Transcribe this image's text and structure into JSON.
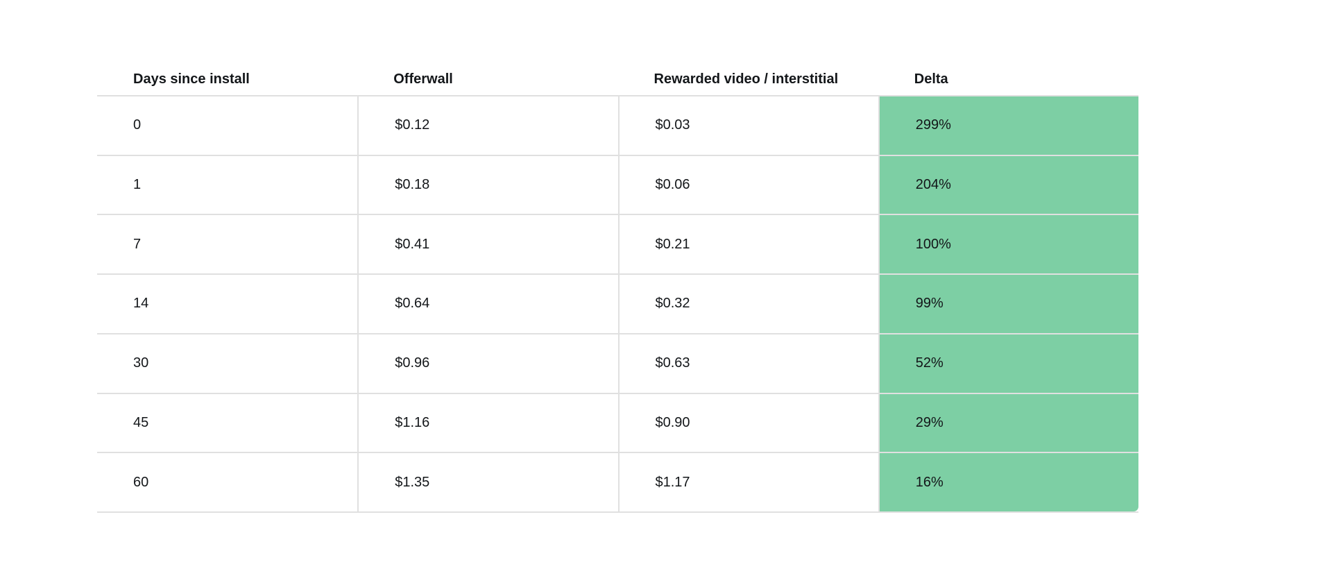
{
  "chart_data": {
    "type": "table",
    "title": "",
    "columns": [
      "Days since install",
      "Offerwall",
      "Rewarded video / interstitial",
      "Delta"
    ],
    "rows": [
      [
        "0",
        "$0.12",
        "$0.03",
        "299%"
      ],
      [
        "1",
        "$0.18",
        "$0.06",
        "204%"
      ],
      [
        "7",
        "$0.41",
        "$0.21",
        "100%"
      ],
      [
        "14",
        "$0.64",
        "$0.32",
        "99%"
      ],
      [
        "30",
        "$0.96",
        "$0.63",
        "52%"
      ],
      [
        "45",
        "$1.16",
        "$0.90",
        "29%"
      ],
      [
        "60",
        "$1.35",
        "$1.17",
        "16%"
      ]
    ],
    "highlighted_column": "Delta",
    "layout_hints": {
      "header_bold": true,
      "row_separators": true,
      "column_separators_body_only": true
    }
  },
  "colors": {
    "delta_bg": "#7dcfa4",
    "border": "#e0e0e0",
    "text": "#131619",
    "page_bg": "#ffffff"
  }
}
